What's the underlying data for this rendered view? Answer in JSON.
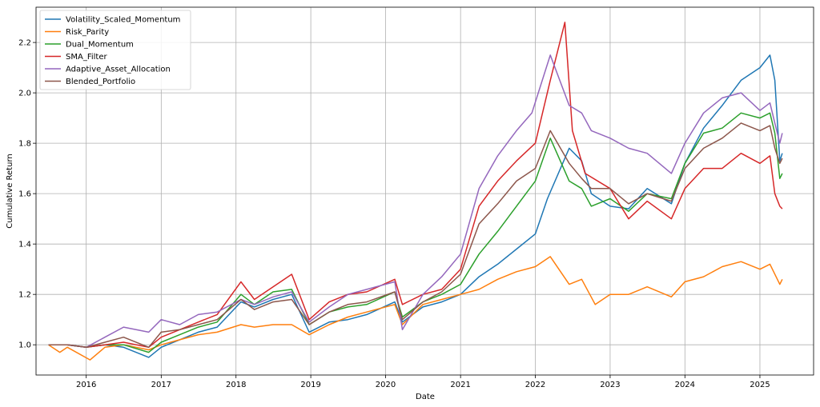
{
  "chart_data": {
    "type": "line",
    "title": "",
    "xlabel": "Date",
    "ylabel": "Cumulative Return",
    "x_axis_type": "date",
    "xlim": [
      "2015-05-01",
      "2025-09-20"
    ],
    "ylim": [
      0.88,
      2.34
    ],
    "xticks": [
      "2016",
      "2017",
      "2018",
      "2019",
      "2020",
      "2021",
      "2022",
      "2023",
      "2024",
      "2025"
    ],
    "yticks": [
      "1.0",
      "1.2",
      "1.4",
      "1.6",
      "1.8",
      "2.0",
      "2.2"
    ],
    "grid": true,
    "legend_position": "top-left",
    "series": [
      {
        "name": "Volatility_Scaled_Momentum",
        "color": "#1f77b4",
        "points": [
          [
            "2015-07-01",
            1.0
          ],
          [
            "2015-10-01",
            1.0
          ],
          [
            "2016-01-01",
            0.99
          ],
          [
            "2016-04-01",
            1.0
          ],
          [
            "2016-07-01",
            0.99
          ],
          [
            "2016-11-01",
            0.95
          ],
          [
            "2017-01-01",
            0.99
          ],
          [
            "2017-04-01",
            1.02
          ],
          [
            "2017-07-01",
            1.05
          ],
          [
            "2017-10-01",
            1.07
          ],
          [
            "2018-01-25",
            1.17
          ],
          [
            "2018-04-01",
            1.15
          ],
          [
            "2018-07-01",
            1.18
          ],
          [
            "2018-09-30",
            1.2
          ],
          [
            "2018-12-24",
            1.05
          ],
          [
            "2019-04-01",
            1.09
          ],
          [
            "2019-07-01",
            1.1
          ],
          [
            "2019-10-01",
            1.12
          ],
          [
            "2020-02-15",
            1.17
          ],
          [
            "2020-03-23",
            1.09
          ],
          [
            "2020-07-01",
            1.15
          ],
          [
            "2020-10-01",
            1.17
          ],
          [
            "2021-01-01",
            1.2
          ],
          [
            "2021-04-01",
            1.27
          ],
          [
            "2021-07-01",
            1.32
          ],
          [
            "2021-10-01",
            1.38
          ],
          [
            "2022-01-01",
            1.44
          ],
          [
            "2022-03-01",
            1.58
          ],
          [
            "2022-06-15",
            1.78
          ],
          [
            "2022-08-15",
            1.73
          ],
          [
            "2022-10-01",
            1.6
          ],
          [
            "2023-01-01",
            1.55
          ],
          [
            "2023-04-01",
            1.54
          ],
          [
            "2023-07-01",
            1.62
          ],
          [
            "2023-10-27",
            1.56
          ],
          [
            "2024-01-01",
            1.72
          ],
          [
            "2024-04-01",
            1.86
          ],
          [
            "2024-07-01",
            1.95
          ],
          [
            "2024-10-01",
            2.05
          ],
          [
            "2025-01-01",
            2.1
          ],
          [
            "2025-02-19",
            2.15
          ],
          [
            "2025-03-15",
            2.05
          ],
          [
            "2025-04-08",
            1.73
          ],
          [
            "2025-04-20",
            1.76
          ]
        ]
      },
      {
        "name": "Risk_Parity",
        "color": "#ff7f0e",
        "points": [
          [
            "2015-07-01",
            1.0
          ],
          [
            "2015-08-25",
            0.97
          ],
          [
            "2015-10-01",
            0.99
          ],
          [
            "2016-01-20",
            0.94
          ],
          [
            "2016-04-01",
            0.99
          ],
          [
            "2016-07-01",
            1.0
          ],
          [
            "2016-11-01",
            0.98
          ],
          [
            "2017-01-01",
            1.0
          ],
          [
            "2017-04-01",
            1.02
          ],
          [
            "2017-07-01",
            1.04
          ],
          [
            "2017-10-01",
            1.05
          ],
          [
            "2018-01-25",
            1.08
          ],
          [
            "2018-04-01",
            1.07
          ],
          [
            "2018-07-01",
            1.08
          ],
          [
            "2018-09-30",
            1.08
          ],
          [
            "2018-12-24",
            1.04
          ],
          [
            "2019-04-01",
            1.08
          ],
          [
            "2019-07-01",
            1.11
          ],
          [
            "2019-10-01",
            1.13
          ],
          [
            "2020-02-15",
            1.16
          ],
          [
            "2020-03-23",
            1.08
          ],
          [
            "2020-07-01",
            1.16
          ],
          [
            "2020-10-01",
            1.18
          ],
          [
            "2021-01-01",
            1.2
          ],
          [
            "2021-04-01",
            1.22
          ],
          [
            "2021-07-01",
            1.26
          ],
          [
            "2021-10-01",
            1.29
          ],
          [
            "2022-01-01",
            1.31
          ],
          [
            "2022-03-15",
            1.35
          ],
          [
            "2022-06-15",
            1.24
          ],
          [
            "2022-08-15",
            1.26
          ],
          [
            "2022-10-20",
            1.16
          ],
          [
            "2023-01-01",
            1.2
          ],
          [
            "2023-04-01",
            1.2
          ],
          [
            "2023-07-01",
            1.23
          ],
          [
            "2023-10-27",
            1.19
          ],
          [
            "2024-01-01",
            1.25
          ],
          [
            "2024-04-01",
            1.27
          ],
          [
            "2024-07-01",
            1.31
          ],
          [
            "2024-10-01",
            1.33
          ],
          [
            "2025-01-01",
            1.3
          ],
          [
            "2025-02-19",
            1.32
          ],
          [
            "2025-04-08",
            1.24
          ],
          [
            "2025-04-20",
            1.26
          ]
        ]
      },
      {
        "name": "Dual_Momentum",
        "color": "#2ca02c",
        "points": [
          [
            "2015-07-01",
            1.0
          ],
          [
            "2015-10-01",
            1.0
          ],
          [
            "2016-01-01",
            0.99
          ],
          [
            "2016-04-01",
            1.0
          ],
          [
            "2016-07-01",
            1.0
          ],
          [
            "2016-11-01",
            0.97
          ],
          [
            "2017-01-01",
            1.01
          ],
          [
            "2017-04-01",
            1.04
          ],
          [
            "2017-07-01",
            1.07
          ],
          [
            "2017-10-01",
            1.09
          ],
          [
            "2018-01-25",
            1.2
          ],
          [
            "2018-04-01",
            1.16
          ],
          [
            "2018-07-01",
            1.21
          ],
          [
            "2018-09-30",
            1.22
          ],
          [
            "2018-12-24",
            1.08
          ],
          [
            "2019-04-01",
            1.13
          ],
          [
            "2019-07-01",
            1.15
          ],
          [
            "2019-10-01",
            1.16
          ],
          [
            "2020-02-15",
            1.21
          ],
          [
            "2020-03-23",
            1.11
          ],
          [
            "2020-07-01",
            1.17
          ],
          [
            "2020-10-01",
            1.2
          ],
          [
            "2021-01-01",
            1.24
          ],
          [
            "2021-04-01",
            1.36
          ],
          [
            "2021-07-01",
            1.45
          ],
          [
            "2021-10-01",
            1.55
          ],
          [
            "2022-01-01",
            1.65
          ],
          [
            "2022-03-15",
            1.82
          ],
          [
            "2022-06-15",
            1.65
          ],
          [
            "2022-08-15",
            1.62
          ],
          [
            "2022-10-01",
            1.55
          ],
          [
            "2023-01-01",
            1.58
          ],
          [
            "2023-04-01",
            1.53
          ],
          [
            "2023-07-01",
            1.6
          ],
          [
            "2023-10-27",
            1.58
          ],
          [
            "2024-01-01",
            1.72
          ],
          [
            "2024-04-01",
            1.84
          ],
          [
            "2024-07-01",
            1.86
          ],
          [
            "2024-10-01",
            1.92
          ],
          [
            "2025-01-01",
            1.9
          ],
          [
            "2025-02-19",
            1.92
          ],
          [
            "2025-03-15",
            1.84
          ],
          [
            "2025-04-08",
            1.66
          ],
          [
            "2025-04-20",
            1.68
          ]
        ]
      },
      {
        "name": "SMA_Filter",
        "color": "#d62728",
        "points": [
          [
            "2015-07-01",
            1.0
          ],
          [
            "2015-10-01",
            1.0
          ],
          [
            "2016-01-01",
            0.99
          ],
          [
            "2016-04-01",
            1.0
          ],
          [
            "2016-07-01",
            1.01
          ],
          [
            "2016-11-01",
            0.99
          ],
          [
            "2017-01-01",
            1.03
          ],
          [
            "2017-04-01",
            1.06
          ],
          [
            "2017-07-01",
            1.09
          ],
          [
            "2017-10-01",
            1.12
          ],
          [
            "2018-01-25",
            1.25
          ],
          [
            "2018-04-01",
            1.18
          ],
          [
            "2018-07-01",
            1.23
          ],
          [
            "2018-09-30",
            1.28
          ],
          [
            "2018-12-24",
            1.1
          ],
          [
            "2019-04-01",
            1.17
          ],
          [
            "2019-07-01",
            1.2
          ],
          [
            "2019-10-01",
            1.21
          ],
          [
            "2020-02-15",
            1.26
          ],
          [
            "2020-03-23",
            1.16
          ],
          [
            "2020-07-01",
            1.2
          ],
          [
            "2020-10-01",
            1.22
          ],
          [
            "2021-01-01",
            1.3
          ],
          [
            "2021-04-01",
            1.55
          ],
          [
            "2021-07-01",
            1.65
          ],
          [
            "2021-10-01",
            1.73
          ],
          [
            "2022-01-01",
            1.8
          ],
          [
            "2022-03-15",
            2.05
          ],
          [
            "2022-05-25",
            2.28
          ],
          [
            "2022-07-01",
            1.85
          ],
          [
            "2022-09-01",
            1.68
          ],
          [
            "2023-01-01",
            1.62
          ],
          [
            "2023-04-01",
            1.5
          ],
          [
            "2023-07-01",
            1.57
          ],
          [
            "2023-10-27",
            1.5
          ],
          [
            "2024-01-01",
            1.62
          ],
          [
            "2024-04-01",
            1.7
          ],
          [
            "2024-07-01",
            1.7
          ],
          [
            "2024-10-01",
            1.76
          ],
          [
            "2025-01-01",
            1.72
          ],
          [
            "2025-02-19",
            1.75
          ],
          [
            "2025-03-15",
            1.6
          ],
          [
            "2025-04-08",
            1.55
          ],
          [
            "2025-04-20",
            1.54
          ]
        ]
      },
      {
        "name": "Adaptive_Asset_Allocation",
        "color": "#9467bd",
        "points": [
          [
            "2015-07-01",
            1.0
          ],
          [
            "2015-10-01",
            1.0
          ],
          [
            "2016-01-01",
            0.99
          ],
          [
            "2016-04-01",
            1.03
          ],
          [
            "2016-07-01",
            1.07
          ],
          [
            "2016-11-01",
            1.05
          ],
          [
            "2017-01-01",
            1.1
          ],
          [
            "2017-04-01",
            1.08
          ],
          [
            "2017-07-01",
            1.12
          ],
          [
            "2017-10-01",
            1.13
          ],
          [
            "2018-01-25",
            1.18
          ],
          [
            "2018-04-01",
            1.16
          ],
          [
            "2018-07-01",
            1.19
          ],
          [
            "2018-09-30",
            1.21
          ],
          [
            "2018-12-24",
            1.09
          ],
          [
            "2019-04-01",
            1.15
          ],
          [
            "2019-07-01",
            1.2
          ],
          [
            "2019-10-01",
            1.22
          ],
          [
            "2020-02-15",
            1.25
          ],
          [
            "2020-03-23",
            1.06
          ],
          [
            "2020-07-01",
            1.2
          ],
          [
            "2020-10-01",
            1.27
          ],
          [
            "2021-01-01",
            1.36
          ],
          [
            "2021-04-01",
            1.62
          ],
          [
            "2021-07-01",
            1.75
          ],
          [
            "2021-10-01",
            1.85
          ],
          [
            "2021-12-15",
            1.92
          ],
          [
            "2022-03-15",
            2.15
          ],
          [
            "2022-06-15",
            1.95
          ],
          [
            "2022-08-15",
            1.92
          ],
          [
            "2022-10-01",
            1.85
          ],
          [
            "2023-01-01",
            1.82
          ],
          [
            "2023-04-01",
            1.78
          ],
          [
            "2023-07-01",
            1.76
          ],
          [
            "2023-10-27",
            1.68
          ],
          [
            "2024-01-01",
            1.8
          ],
          [
            "2024-04-01",
            1.92
          ],
          [
            "2024-07-01",
            1.98
          ],
          [
            "2024-10-01",
            2.0
          ],
          [
            "2025-01-01",
            1.93
          ],
          [
            "2025-02-19",
            1.96
          ],
          [
            "2025-03-15",
            1.88
          ],
          [
            "2025-04-08",
            1.8
          ],
          [
            "2025-04-20",
            1.84
          ]
        ]
      },
      {
        "name": "Blended_Portfolio",
        "color": "#8c564b",
        "points": [
          [
            "2015-07-01",
            1.0
          ],
          [
            "2015-10-01",
            1.0
          ],
          [
            "2016-01-01",
            0.99
          ],
          [
            "2016-04-01",
            1.01
          ],
          [
            "2016-07-01",
            1.03
          ],
          [
            "2016-11-01",
            0.99
          ],
          [
            "2017-01-01",
            1.05
          ],
          [
            "2017-04-01",
            1.06
          ],
          [
            "2017-07-01",
            1.08
          ],
          [
            "2017-10-01",
            1.1
          ],
          [
            "2018-01-25",
            1.18
          ],
          [
            "2018-04-01",
            1.14
          ],
          [
            "2018-07-01",
            1.17
          ],
          [
            "2018-09-30",
            1.18
          ],
          [
            "2018-12-24",
            1.08
          ],
          [
            "2019-04-01",
            1.13
          ],
          [
            "2019-07-01",
            1.16
          ],
          [
            "2019-10-01",
            1.17
          ],
          [
            "2020-02-15",
            1.21
          ],
          [
            "2020-03-23",
            1.1
          ],
          [
            "2020-07-01",
            1.17
          ],
          [
            "2020-10-01",
            1.21
          ],
          [
            "2021-01-01",
            1.28
          ],
          [
            "2021-04-01",
            1.48
          ],
          [
            "2021-07-01",
            1.56
          ],
          [
            "2021-10-01",
            1.65
          ],
          [
            "2022-01-01",
            1.7
          ],
          [
            "2022-03-15",
            1.85
          ],
          [
            "2022-06-15",
            1.72
          ],
          [
            "2022-08-15",
            1.66
          ],
          [
            "2022-10-01",
            1.62
          ],
          [
            "2023-01-01",
            1.62
          ],
          [
            "2023-04-01",
            1.56
          ],
          [
            "2023-07-01",
            1.6
          ],
          [
            "2023-10-27",
            1.57
          ],
          [
            "2024-01-01",
            1.7
          ],
          [
            "2024-04-01",
            1.78
          ],
          [
            "2024-07-01",
            1.82
          ],
          [
            "2024-10-01",
            1.88
          ],
          [
            "2025-01-01",
            1.85
          ],
          [
            "2025-02-19",
            1.87
          ],
          [
            "2025-03-15",
            1.78
          ],
          [
            "2025-04-08",
            1.72
          ],
          [
            "2025-04-20",
            1.74
          ]
        ]
      }
    ]
  }
}
